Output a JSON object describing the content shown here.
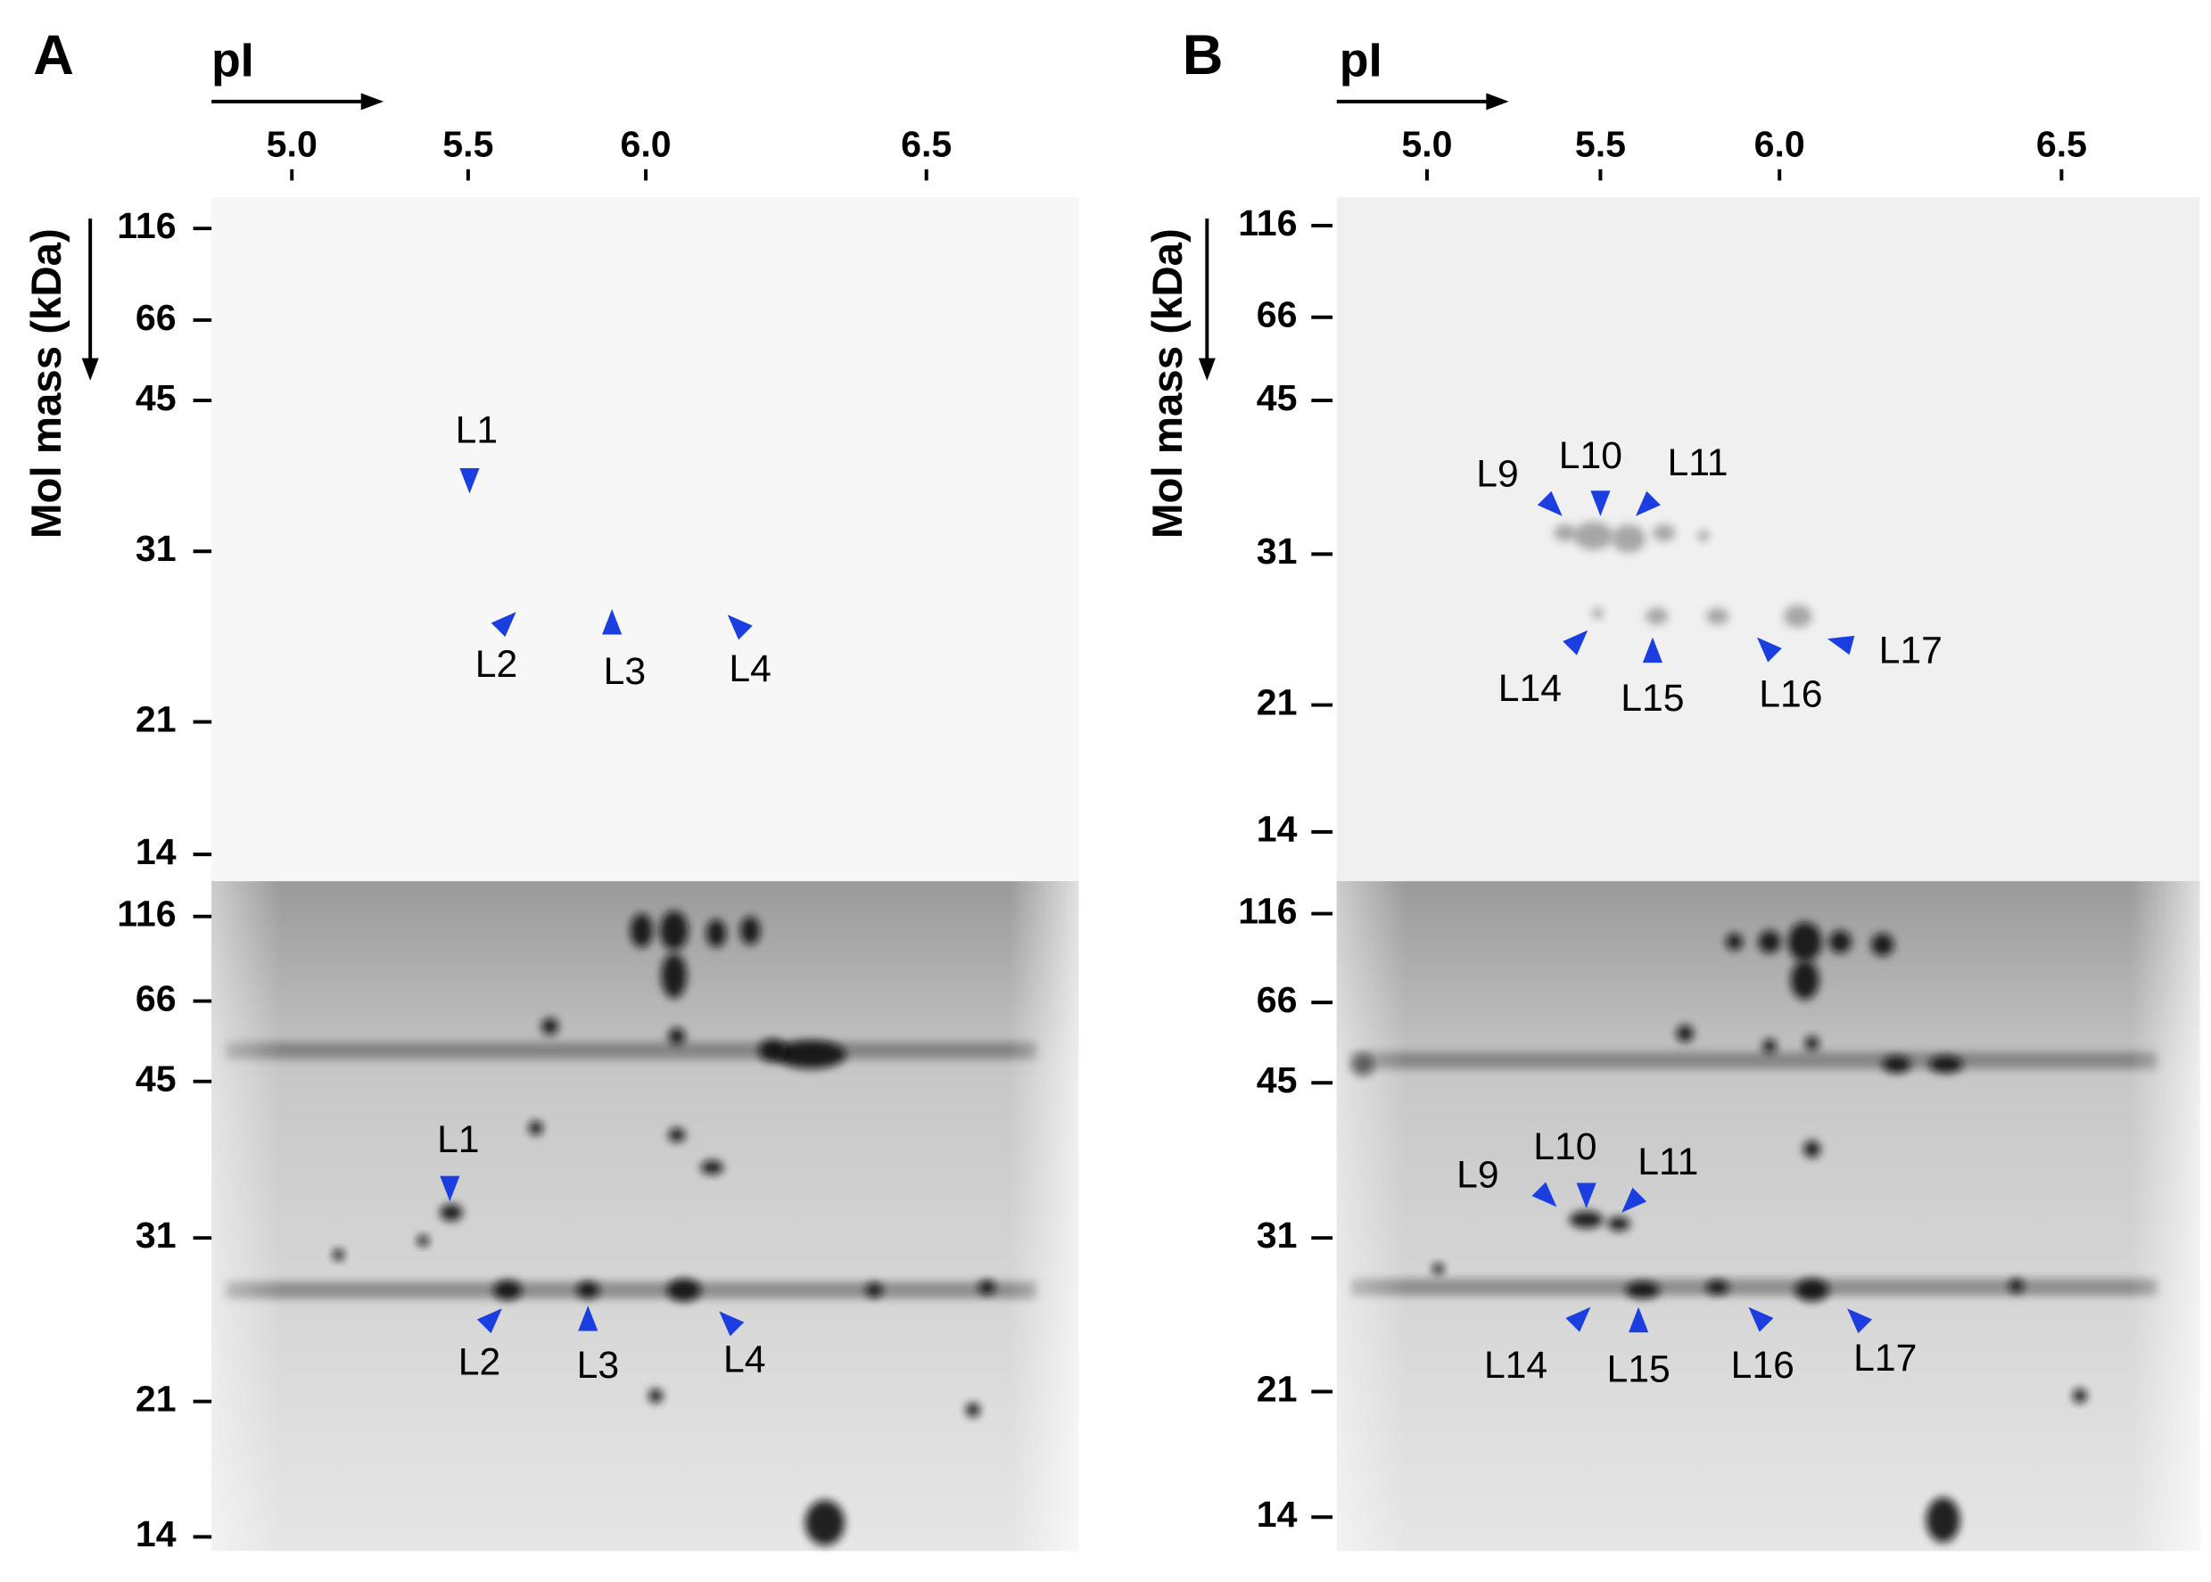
{
  "panels": [
    {
      "letter": "A",
      "pi_label": "pI",
      "pi_ticks": [
        "5.0",
        "5.5",
        "6.0",
        "6.5"
      ],
      "mass_label": "Mol mass (kDa)",
      "upper_gel": {
        "mass_ticks": [
          "116",
          "66",
          "45",
          "31",
          "21",
          "14"
        ],
        "spots": [
          "L1",
          "L2",
          "L3",
          "L4"
        ]
      },
      "lower_gel": {
        "mass_ticks": [
          "116",
          "66",
          "45",
          "31",
          "21",
          "14"
        ],
        "spots": [
          "L1",
          "L2",
          "L3",
          "L4"
        ]
      }
    },
    {
      "letter": "B",
      "pi_label": "pI",
      "pi_ticks": [
        "5.0",
        "5.5",
        "6.0",
        "6.5"
      ],
      "mass_label": "Mol mass (kDa)",
      "upper_gel": {
        "mass_ticks": [
          "116",
          "66",
          "45",
          "31",
          "21",
          "14"
        ],
        "spots": [
          "L9",
          "L10",
          "L11",
          "L14",
          "L15",
          "L16",
          "L17"
        ]
      },
      "lower_gel": {
        "mass_ticks": [
          "116",
          "66",
          "45",
          "31",
          "21",
          "14"
        ],
        "spots": [
          "L9",
          "L10",
          "L11",
          "L14",
          "L15",
          "L16",
          "L17"
        ]
      }
    }
  ]
}
